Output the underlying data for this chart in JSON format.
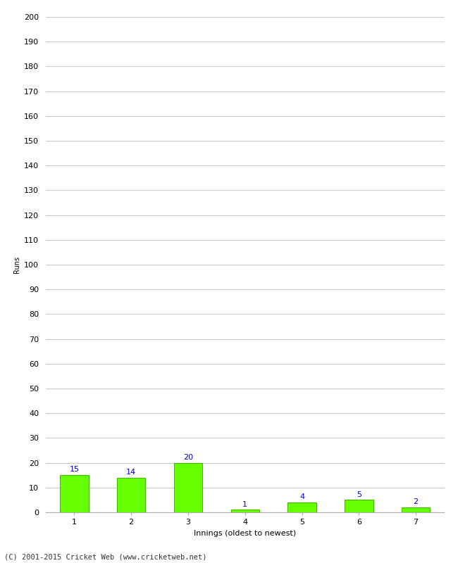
{
  "categories": [
    "1",
    "2",
    "3",
    "4",
    "5",
    "6",
    "7"
  ],
  "values": [
    15,
    14,
    20,
    1,
    4,
    5,
    2
  ],
  "bar_color": "#66ff00",
  "bar_edge_color": "#44bb00",
  "label_color": "#0000cc",
  "xlabel": "Innings (oldest to newest)",
  "ylabel": "Runs",
  "ylim": [
    0,
    200
  ],
  "yticks": [
    0,
    10,
    20,
    30,
    40,
    50,
    60,
    70,
    80,
    90,
    100,
    110,
    120,
    130,
    140,
    150,
    160,
    170,
    180,
    190,
    200
  ],
  "footer": "(C) 2001-2015 Cricket Web (www.cricketweb.net)",
  "background_color": "#ffffff",
  "grid_color": "#cccccc",
  "label_fontsize": 8,
  "axis_fontsize": 8,
  "footer_fontsize": 7.5,
  "xlabel_fontsize": 8,
  "ylabel_fontsize": 7
}
